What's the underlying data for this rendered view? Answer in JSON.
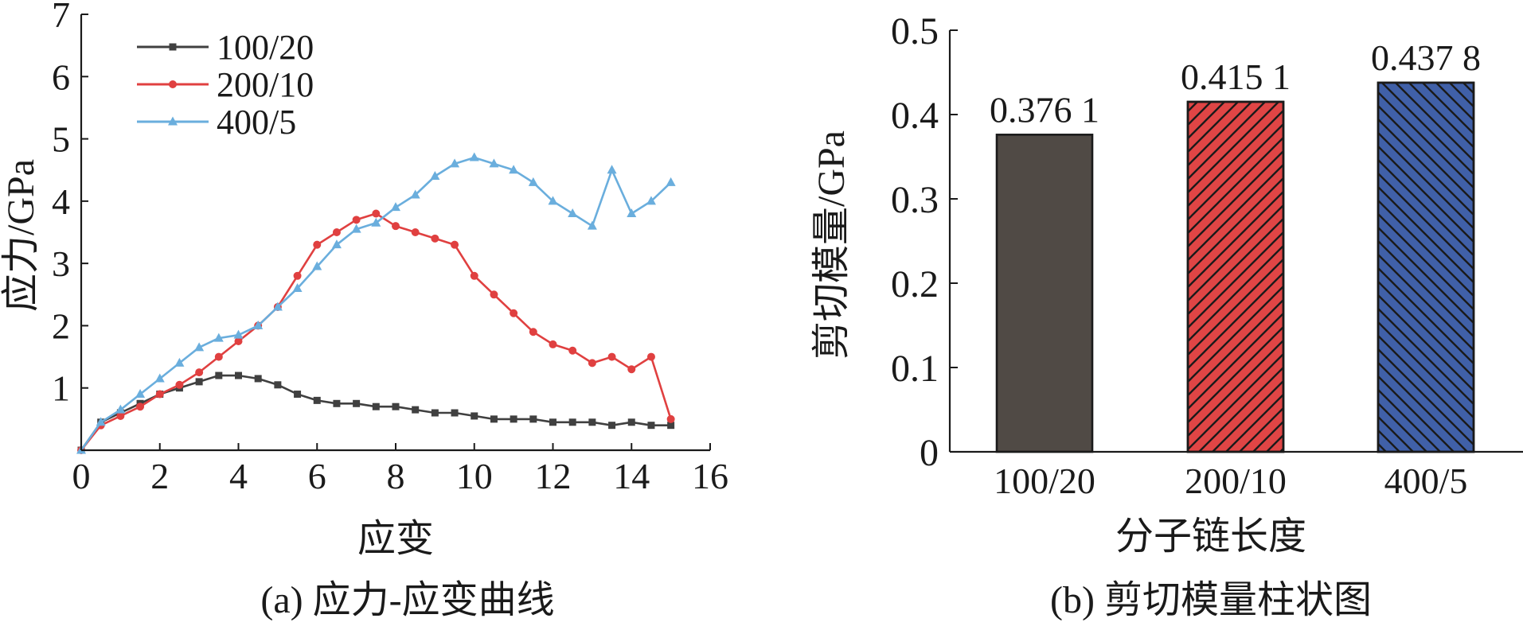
{
  "chart_data": [
    {
      "type": "line",
      "caption": "(a) 应力-应变曲线",
      "xlabel": "应变",
      "ylabel": "应力/GPa",
      "xlim": [
        0,
        16
      ],
      "ylim": [
        0,
        7
      ],
      "xticks": [
        "0",
        "2",
        "4",
        "6",
        "8",
        "10",
        "12",
        "14",
        "16"
      ],
      "yticks": [
        "1",
        "2",
        "3",
        "4",
        "5",
        "6",
        "7"
      ],
      "legend_position": "top-left",
      "series": [
        {
          "name": "100/20",
          "color": "#404040",
          "marker": "square",
          "x": [
            0,
            0.5,
            1,
            1.5,
            2,
            2.5,
            3,
            3.5,
            4,
            4.5,
            5,
            5.5,
            6,
            6.5,
            7,
            7.5,
            8,
            8.5,
            9,
            9.5,
            10,
            10.5,
            11,
            11.5,
            12,
            12.5,
            13,
            13.5,
            14,
            14.5,
            15
          ],
          "y": [
            0,
            0.45,
            0.6,
            0.75,
            0.9,
            1.0,
            1.1,
            1.2,
            1.2,
            1.15,
            1.05,
            0.9,
            0.8,
            0.75,
            0.75,
            0.7,
            0.7,
            0.65,
            0.6,
            0.6,
            0.55,
            0.5,
            0.5,
            0.5,
            0.45,
            0.45,
            0.45,
            0.4,
            0.45,
            0.4,
            0.4
          ]
        },
        {
          "name": "200/10",
          "color": "#e04040",
          "marker": "circle",
          "x": [
            0,
            0.5,
            1,
            1.5,
            2,
            2.5,
            3,
            3.5,
            4,
            4.5,
            5,
            5.5,
            6,
            6.5,
            7,
            7.5,
            8,
            8.5,
            9,
            9.5,
            10,
            10.5,
            11,
            11.5,
            12,
            12.5,
            13,
            13.5,
            14,
            14.5,
            15
          ],
          "y": [
            0,
            0.4,
            0.55,
            0.7,
            0.9,
            1.05,
            1.25,
            1.5,
            1.75,
            2.0,
            2.3,
            2.8,
            3.3,
            3.5,
            3.7,
            3.8,
            3.6,
            3.5,
            3.4,
            3.3,
            2.8,
            2.5,
            2.2,
            1.9,
            1.7,
            1.6,
            1.4,
            1.5,
            1.3,
            1.5,
            0.5
          ]
        },
        {
          "name": "400/5",
          "color": "#6aaedd",
          "marker": "triangle",
          "x": [
            0,
            0.5,
            1,
            1.5,
            2,
            2.5,
            3,
            3.5,
            4,
            4.5,
            5,
            5.5,
            6,
            6.5,
            7,
            7.5,
            8,
            8.5,
            9,
            9.5,
            10,
            10.5,
            11,
            11.5,
            12,
            12.5,
            13,
            13.5,
            14,
            14.5,
            15
          ],
          "y": [
            0,
            0.45,
            0.65,
            0.9,
            1.15,
            1.4,
            1.65,
            1.8,
            1.85,
            2.0,
            2.3,
            2.6,
            2.95,
            3.3,
            3.55,
            3.65,
            3.9,
            4.1,
            4.4,
            4.6,
            4.7,
            4.6,
            4.5,
            4.3,
            4.0,
            3.8,
            3.6,
            4.5,
            3.8,
            4.0,
            4.3
          ]
        }
      ]
    },
    {
      "type": "bar",
      "caption": "(b) 剪切模量柱状图",
      "xlabel": "分子链长度",
      "ylabel": "剪切模量/GPa",
      "ylim": [
        0,
        0.5
      ],
      "yticks": [
        "0",
        "0.1",
        "0.2",
        "0.3",
        "0.4",
        "0.5"
      ],
      "categories": [
        "100/20",
        "200/10",
        "400/5"
      ],
      "values": [
        0.3761,
        0.4151,
        0.4378
      ],
      "value_labels": [
        "0.376 1",
        "0.415 1",
        "0.437 8"
      ],
      "colors": [
        "#504a45",
        "#e04545",
        "#4060a8"
      ],
      "hatch": [
        "none",
        "diagonal-forward",
        "diagonal-backward"
      ]
    }
  ]
}
